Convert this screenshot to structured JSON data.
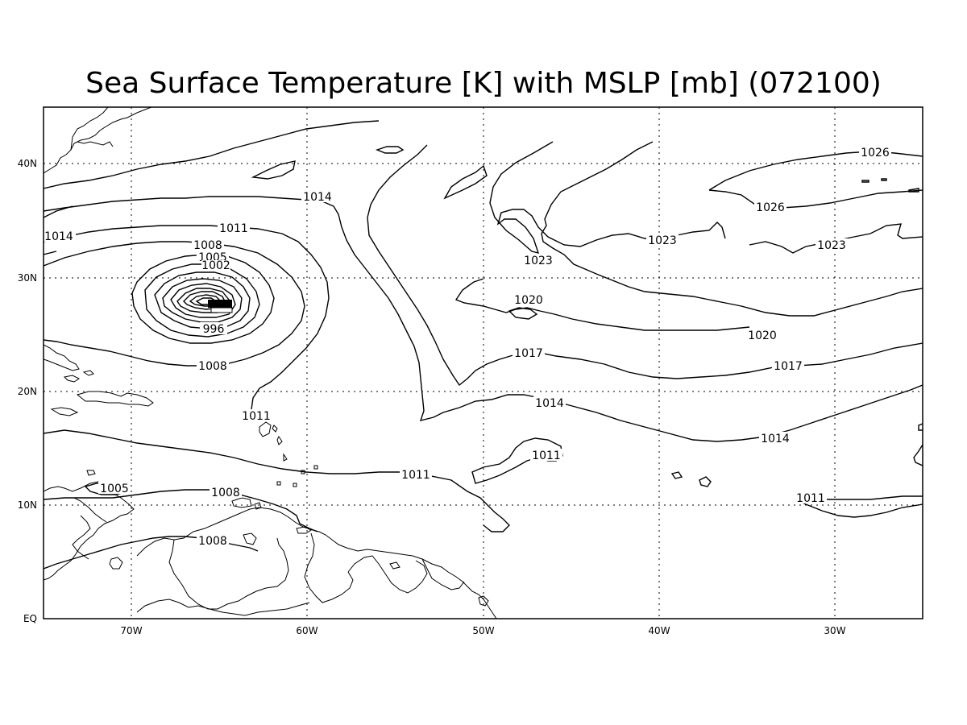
{
  "title": "Sea Surface Temperature [K] with MSLP [mb] (072100)",
  "map": {
    "projection": "lat-lon",
    "lon_range": [
      -75,
      -25
    ],
    "lat_range": [
      0,
      45
    ],
    "grid": "dotted"
  },
  "axes": {
    "lon_ticks": [
      "70W",
      "60W",
      "50W",
      "40W",
      "30W"
    ],
    "lat_ticks": [
      "EQ",
      "10N",
      "20N",
      "30N",
      "40N"
    ]
  },
  "pressure_labels": [
    {
      "text": "1026"
    },
    {
      "text": "1026"
    },
    {
      "text": "1023"
    },
    {
      "text": "1023"
    },
    {
      "text": "1023"
    },
    {
      "text": "1020"
    },
    {
      "text": "1020"
    },
    {
      "text": "1017"
    },
    {
      "text": "1017"
    },
    {
      "text": "1014"
    },
    {
      "text": "1014"
    },
    {
      "text": "1014"
    },
    {
      "text": "1014"
    },
    {
      "text": "1011"
    },
    {
      "text": "1011"
    },
    {
      "text": "1011"
    },
    {
      "text": "1011"
    },
    {
      "text": "1011"
    },
    {
      "text": "1008"
    },
    {
      "text": "1008"
    },
    {
      "text": "1008"
    },
    {
      "text": "1008"
    },
    {
      "text": "1005"
    },
    {
      "text": "1005"
    },
    {
      "text": "1002"
    },
    {
      "text": "996"
    }
  ],
  "colors": {
    "line": "#000000",
    "background": "#ffffff"
  }
}
